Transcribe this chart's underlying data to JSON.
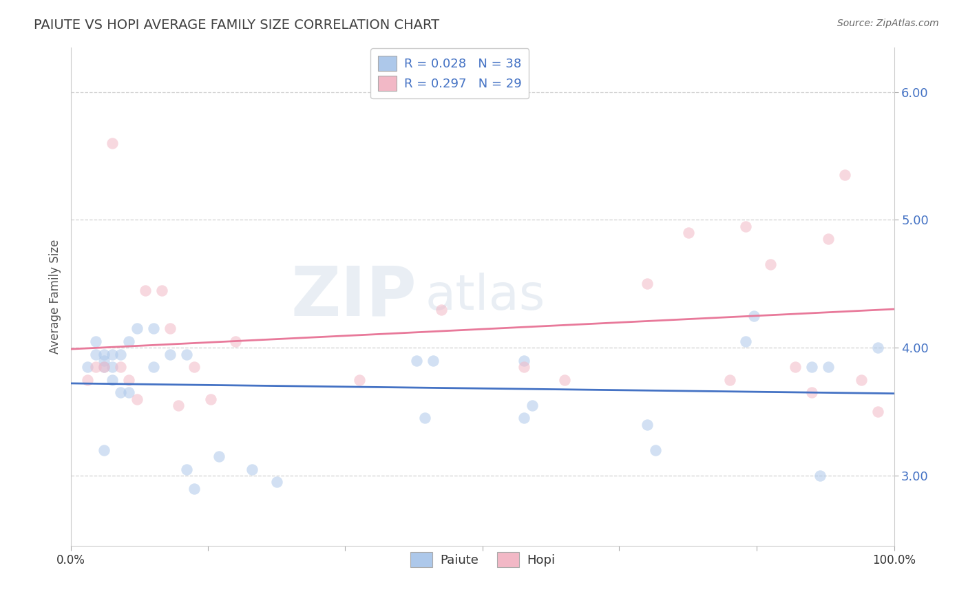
{
  "title": "PAIUTE VS HOPI AVERAGE FAMILY SIZE CORRELATION CHART",
  "source": "Source: ZipAtlas.com",
  "ylabel": "Average Family Size",
  "xlim": [
    0.0,
    1.0
  ],
  "ylim": [
    2.45,
    6.35
  ],
  "yticks": [
    3.0,
    4.0,
    5.0,
    6.0
  ],
  "xticks": [
    0.0,
    0.166,
    0.333,
    0.5,
    0.666,
    0.833,
    1.0
  ],
  "xtick_labels": [
    "0.0%",
    "",
    "",
    "",
    "",
    "",
    "100.0%"
  ],
  "legend_entries": [
    {
      "label": "R = 0.028   N = 38",
      "color": "#adc8ea"
    },
    {
      "label": "R = 0.297   N = 29",
      "color": "#f2b8c6"
    }
  ],
  "legend_bottom": [
    {
      "label": "Paiute",
      "color": "#adc8ea"
    },
    {
      "label": "Hopi",
      "color": "#f2b8c6"
    }
  ],
  "paiute_x": [
    0.02,
    0.03,
    0.03,
    0.04,
    0.04,
    0.04,
    0.04,
    0.05,
    0.05,
    0.05,
    0.06,
    0.06,
    0.07,
    0.07,
    0.08,
    0.1,
    0.1,
    0.12,
    0.14,
    0.14,
    0.15,
    0.18,
    0.22,
    0.25,
    0.42,
    0.43,
    0.44,
    0.55,
    0.55,
    0.56,
    0.7,
    0.71,
    0.82,
    0.83,
    0.9,
    0.91,
    0.92,
    0.98
  ],
  "paiute_y": [
    3.85,
    4.05,
    3.95,
    3.85,
    3.9,
    3.95,
    3.2,
    3.95,
    3.85,
    3.75,
    3.95,
    3.65,
    3.65,
    4.05,
    4.15,
    3.85,
    4.15,
    3.95,
    3.05,
    3.95,
    2.9,
    3.15,
    3.05,
    2.95,
    3.9,
    3.45,
    3.9,
    3.45,
    3.9,
    3.55,
    3.4,
    3.2,
    4.05,
    4.25,
    3.85,
    3.0,
    3.85,
    4.0
  ],
  "hopi_x": [
    0.02,
    0.03,
    0.04,
    0.05,
    0.06,
    0.07,
    0.08,
    0.09,
    0.11,
    0.12,
    0.13,
    0.15,
    0.17,
    0.2,
    0.35,
    0.45,
    0.55,
    0.6,
    0.7,
    0.75,
    0.8,
    0.82,
    0.85,
    0.88,
    0.9,
    0.92,
    0.94,
    0.96,
    0.98
  ],
  "hopi_y": [
    3.75,
    3.85,
    3.85,
    5.6,
    3.85,
    3.75,
    3.6,
    4.45,
    4.45,
    4.15,
    3.55,
    3.85,
    3.6,
    4.05,
    3.75,
    4.3,
    3.85,
    3.75,
    4.5,
    4.9,
    3.75,
    4.95,
    4.65,
    3.85,
    3.65,
    4.85,
    5.35,
    3.75,
    3.5
  ],
  "paiute_color": "#adc8ea",
  "hopi_color": "#f2b8c6",
  "paiute_line_color": "#4472c4",
  "hopi_line_color": "#e8799a",
  "background_color": "#ffffff",
  "grid_color": "#d0d0d0",
  "title_color": "#404040",
  "marker_size": 140,
  "marker_alpha": 0.55
}
